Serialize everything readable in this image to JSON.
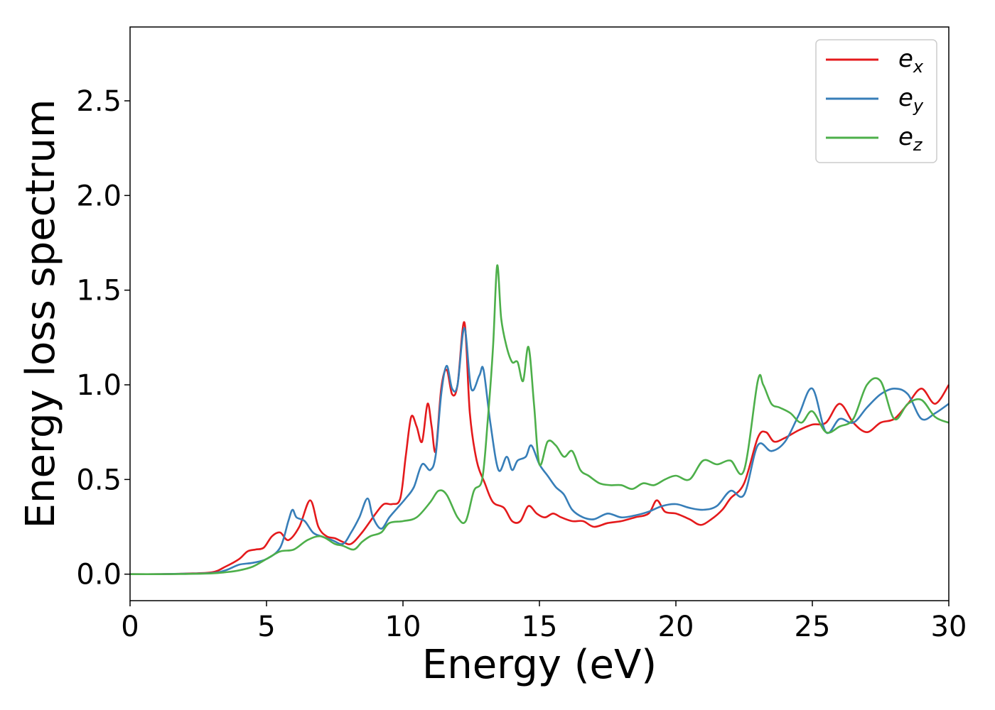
{
  "chart_data": {
    "type": "line",
    "title": "",
    "xlabel": "Energy (eV)",
    "ylabel": "Energy loss spectrum",
    "xlim": [
      0,
      30
    ],
    "ylim": [
      -0.14,
      2.89
    ],
    "xticks": [
      "0",
      "5",
      "10",
      "15",
      "20",
      "25",
      "30"
    ],
    "yticks": [
      "0.0",
      "0.5",
      "1.0",
      "1.5",
      "2.0",
      "2.5"
    ],
    "grid": false,
    "legend_position": "top-right",
    "series": [
      {
        "name": "e",
        "sub": "x",
        "color": "#e41a1c",
        "x": [
          0,
          1,
          2,
          3,
          3.5,
          4,
          4.3,
          4.6,
          4.9,
          5.2,
          5.5,
          5.8,
          6.2,
          6.6,
          6.9,
          7.2,
          7.5,
          7.8,
          8.1,
          8.5,
          9,
          9.3,
          9.6,
          9.9,
          10.1,
          10.3,
          10.5,
          10.7,
          10.9,
          11.05,
          11.2,
          11.4,
          11.6,
          11.8,
          12,
          12.25,
          12.45,
          12.7,
          13,
          13.3,
          13.7,
          14,
          14.3,
          14.6,
          14.9,
          15.2,
          15.5,
          15.8,
          16.2,
          16.6,
          17,
          17.5,
          18,
          18.5,
          19,
          19.3,
          19.6,
          20,
          20.5,
          20.9,
          21.3,
          21.7,
          22,
          22.5,
          23,
          23.3,
          23.6,
          24,
          24.5,
          25,
          25.5,
          26,
          26.5,
          27,
          27.5,
          28,
          28.5,
          29,
          29.5,
          30
        ],
        "y": [
          0,
          0,
          0.003,
          0.01,
          0.04,
          0.08,
          0.12,
          0.13,
          0.14,
          0.2,
          0.22,
          0.18,
          0.25,
          0.39,
          0.25,
          0.2,
          0.19,
          0.17,
          0.16,
          0.22,
          0.32,
          0.37,
          0.37,
          0.4,
          0.62,
          0.83,
          0.78,
          0.7,
          0.9,
          0.78,
          0.65,
          0.98,
          1.08,
          0.95,
          1.0,
          1.33,
          0.85,
          0.6,
          0.48,
          0.38,
          0.35,
          0.28,
          0.28,
          0.36,
          0.32,
          0.3,
          0.32,
          0.3,
          0.28,
          0.28,
          0.25,
          0.27,
          0.28,
          0.3,
          0.32,
          0.39,
          0.33,
          0.32,
          0.29,
          0.26,
          0.29,
          0.34,
          0.4,
          0.48,
          0.72,
          0.75,
          0.7,
          0.72,
          0.76,
          0.79,
          0.8,
          0.9,
          0.8,
          0.75,
          0.8,
          0.82,
          0.9,
          0.98,
          0.9,
          1.0
        ]
      },
      {
        "name": "e",
        "sub": "y",
        "color": "#377eb8",
        "x": [
          0,
          1,
          2,
          3,
          3.5,
          4,
          4.5,
          5,
          5.5,
          5.8,
          5.95,
          6.1,
          6.4,
          6.7,
          7,
          7.4,
          7.8,
          8.1,
          8.4,
          8.7,
          8.9,
          9.2,
          9.5,
          9.8,
          10.1,
          10.4,
          10.7,
          11,
          11.2,
          11.4,
          11.6,
          11.8,
          12,
          12.25,
          12.5,
          12.8,
          12.95,
          13.2,
          13.5,
          13.8,
          14,
          14.2,
          14.5,
          14.7,
          15,
          15.3,
          15.6,
          15.9,
          16.2,
          16.6,
          17,
          17.5,
          18,
          18.5,
          19,
          19.5,
          20,
          20.5,
          21,
          21.5,
          22,
          22.5,
          23,
          23.5,
          24,
          24.5,
          25,
          25.5,
          26,
          26.5,
          27,
          27.5,
          28,
          28.5,
          29,
          29.5,
          30
        ],
        "y": [
          0,
          0,
          0.002,
          0.006,
          0.02,
          0.05,
          0.06,
          0.08,
          0.14,
          0.28,
          0.34,
          0.3,
          0.28,
          0.22,
          0.2,
          0.18,
          0.16,
          0.22,
          0.3,
          0.4,
          0.3,
          0.24,
          0.3,
          0.35,
          0.4,
          0.46,
          0.58,
          0.55,
          0.63,
          0.95,
          1.1,
          0.98,
          1.0,
          1.3,
          0.98,
          1.05,
          1.08,
          0.8,
          0.55,
          0.62,
          0.55,
          0.6,
          0.62,
          0.68,
          0.58,
          0.52,
          0.46,
          0.42,
          0.34,
          0.3,
          0.29,
          0.32,
          0.3,
          0.31,
          0.33,
          0.36,
          0.37,
          0.35,
          0.34,
          0.36,
          0.44,
          0.42,
          0.68,
          0.65,
          0.7,
          0.84,
          0.98,
          0.75,
          0.82,
          0.8,
          0.88,
          0.95,
          0.98,
          0.95,
          0.82,
          0.85,
          0.9
        ]
      },
      {
        "name": "e",
        "sub": "z",
        "color": "#4daf4a",
        "x": [
          0,
          1,
          2,
          3,
          3.5,
          4,
          4.5,
          5,
          5.5,
          6,
          6.5,
          7,
          7.5,
          7.8,
          8.2,
          8.5,
          8.8,
          9.2,
          9.5,
          10,
          10.5,
          11,
          11.3,
          11.6,
          12,
          12.3,
          12.6,
          12.9,
          13.1,
          13.3,
          13.45,
          13.6,
          13.8,
          14,
          14.2,
          14.4,
          14.6,
          14.8,
          15,
          15.3,
          15.6,
          15.9,
          16.2,
          16.5,
          16.8,
          17.2,
          17.6,
          18,
          18.4,
          18.8,
          19.2,
          19.6,
          20,
          20.5,
          21,
          21.5,
          22,
          22.5,
          23,
          23.2,
          23.5,
          23.8,
          24.2,
          24.6,
          25,
          25.5,
          26,
          26.5,
          27,
          27.5,
          28,
          28.5,
          29,
          29.5,
          30
        ],
        "y": [
          0,
          0,
          0.001,
          0.004,
          0.01,
          0.02,
          0.04,
          0.08,
          0.12,
          0.13,
          0.18,
          0.2,
          0.16,
          0.15,
          0.13,
          0.17,
          0.2,
          0.22,
          0.27,
          0.28,
          0.3,
          0.38,
          0.44,
          0.42,
          0.3,
          0.28,
          0.44,
          0.5,
          0.8,
          1.2,
          1.63,
          1.35,
          1.2,
          1.12,
          1.12,
          1.02,
          1.2,
          0.9,
          0.58,
          0.7,
          0.68,
          0.62,
          0.65,
          0.55,
          0.52,
          0.48,
          0.47,
          0.47,
          0.45,
          0.48,
          0.47,
          0.5,
          0.52,
          0.5,
          0.6,
          0.58,
          0.6,
          0.55,
          1.02,
          1.0,
          0.9,
          0.88,
          0.85,
          0.8,
          0.86,
          0.75,
          0.78,
          0.82,
          1.0,
          1.02,
          0.82,
          0.9,
          0.92,
          0.83,
          0.8
        ]
      }
    ]
  }
}
